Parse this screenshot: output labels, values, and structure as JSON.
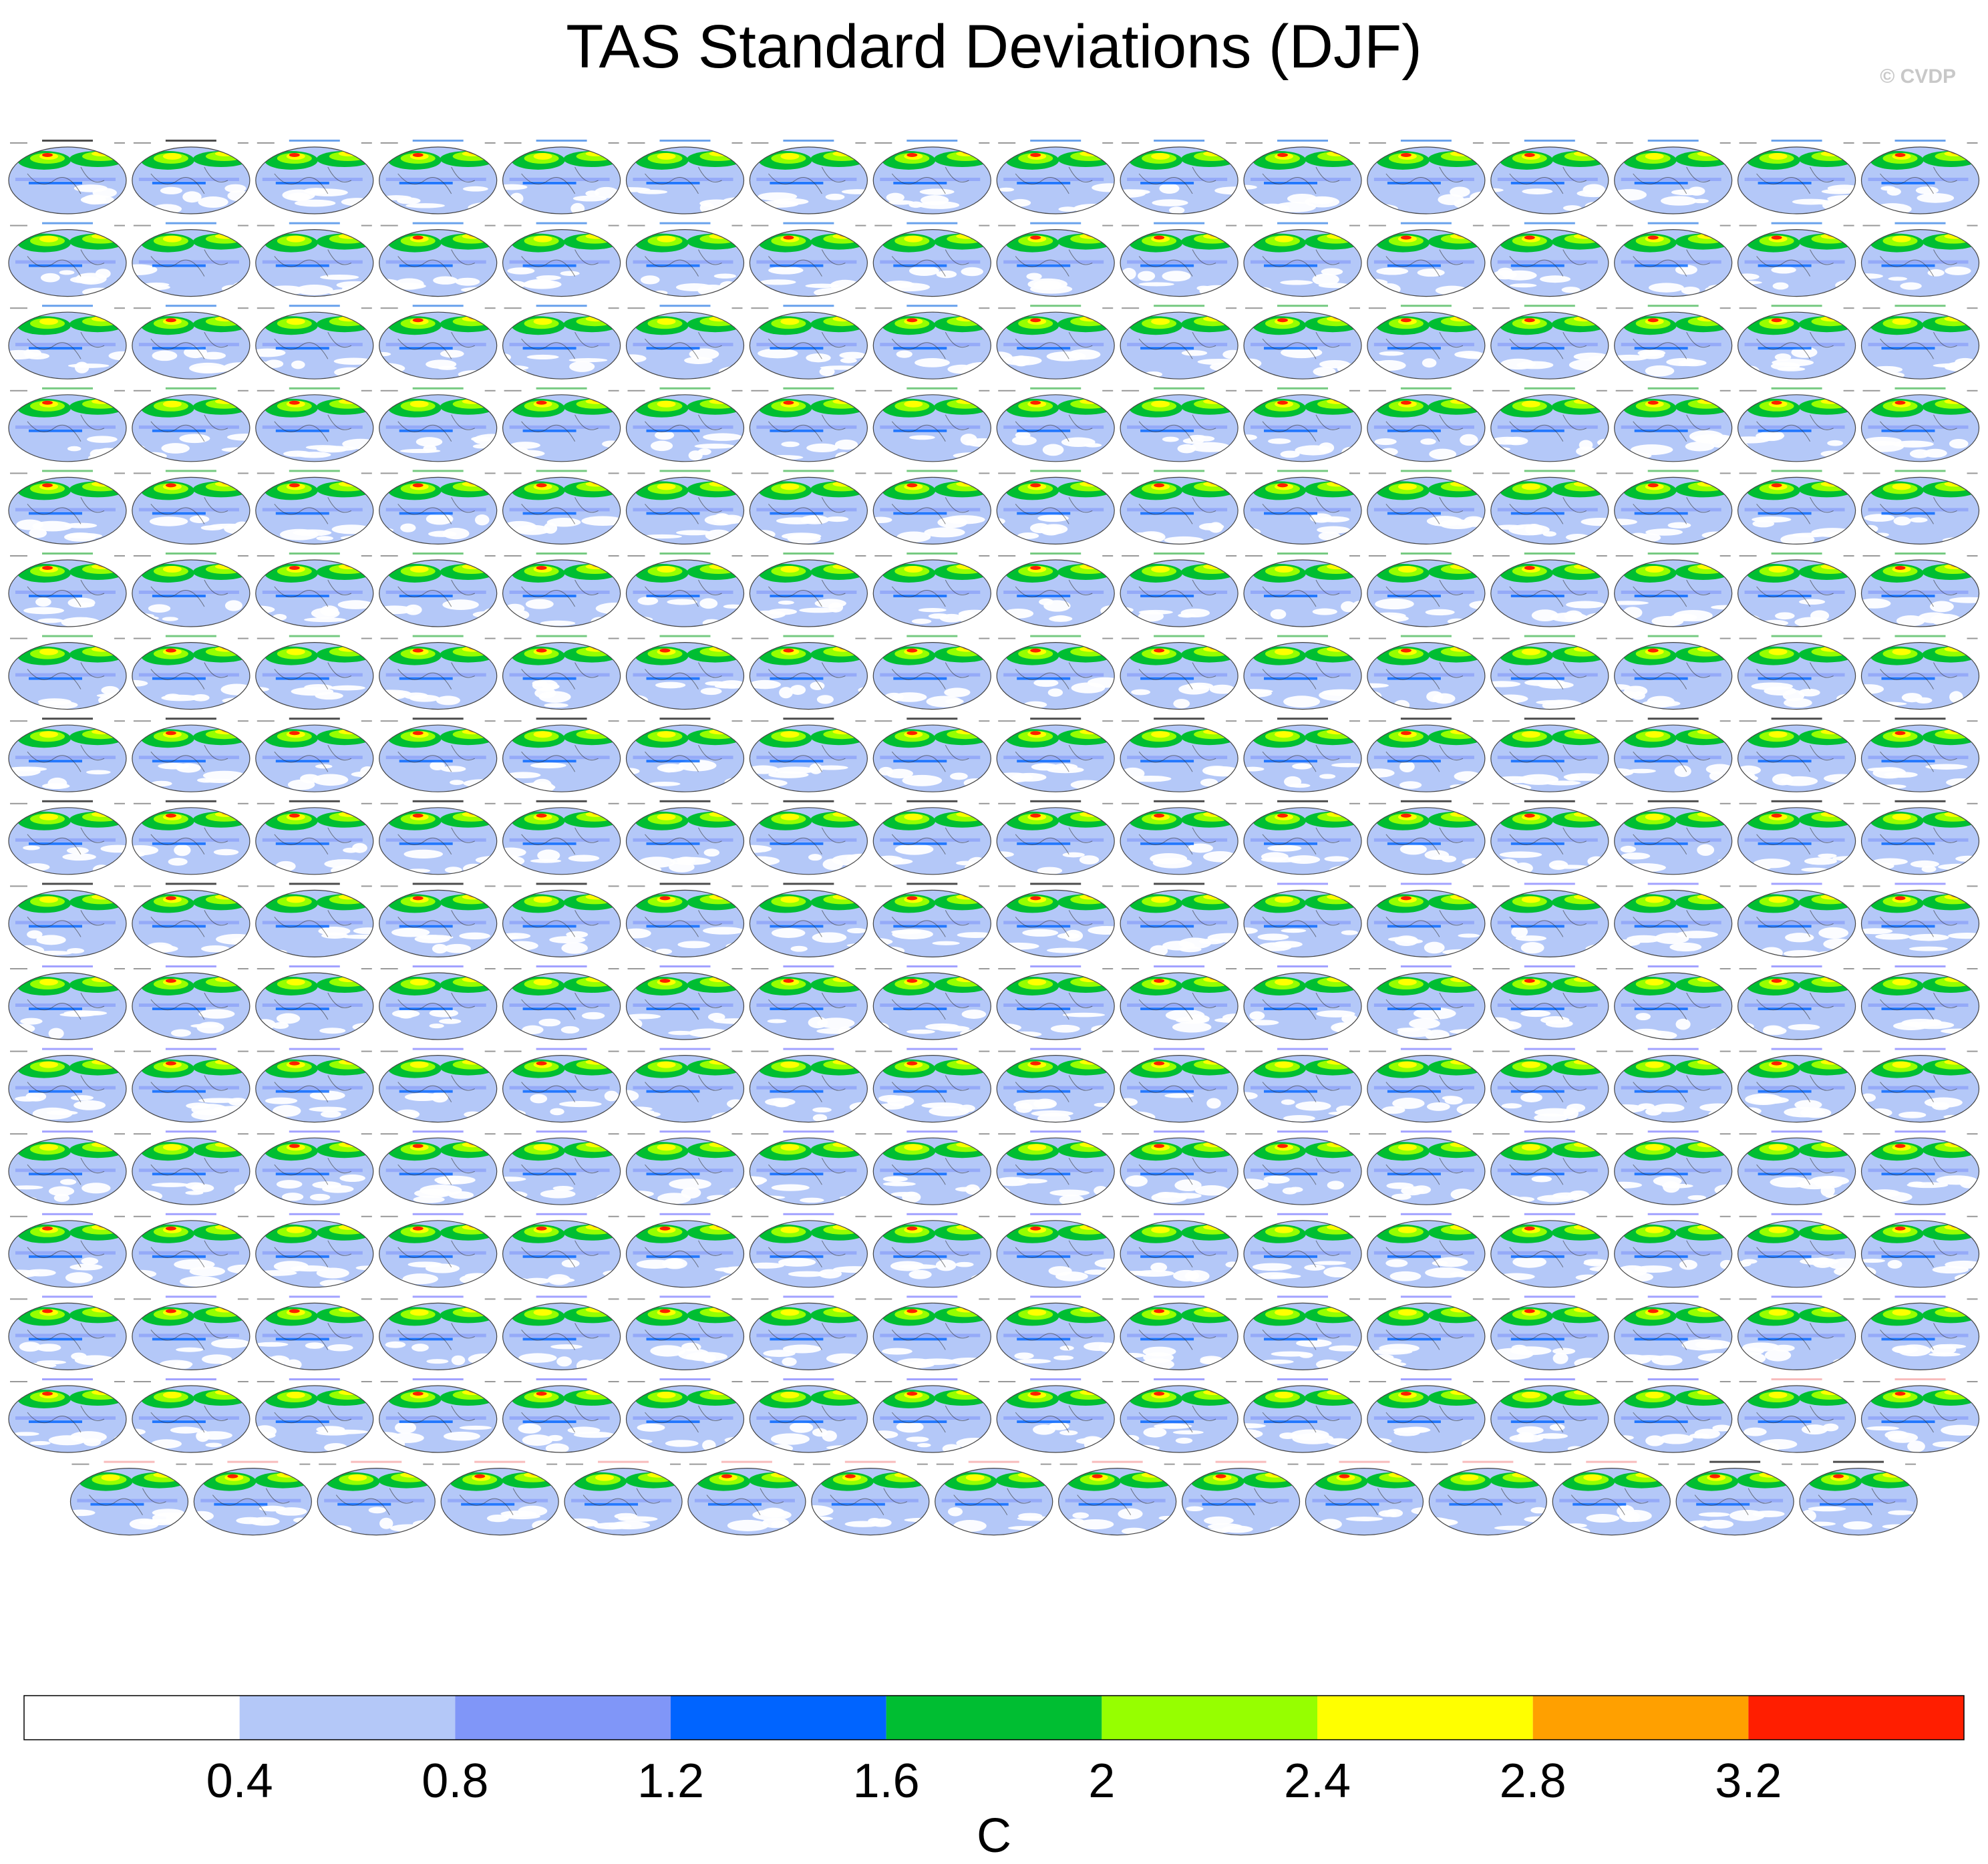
{
  "title": "TAS Standard Deviations (DJF)",
  "copyright": "© CVDP",
  "chart_data": {
    "type": "heatmap",
    "title": "TAS Standard Deviations (DJF)",
    "description_units": "C",
    "panel_grid": {
      "rows": 17,
      "cols": 16,
      "last_row_count": 15
    },
    "colorbar": {
      "label": "C",
      "tick_labels": [
        "0.4",
        "0.8",
        "1.2",
        "1.6",
        "2",
        "2.4",
        "2.8",
        "3.2"
      ],
      "levels": [
        0.4,
        0.8,
        1.2,
        1.6,
        2.0,
        2.4,
        2.8,
        3.2
      ],
      "colors": [
        "#ffffff",
        "#b4c8f8",
        "#8096f8",
        "#0064ff",
        "#00be32",
        "#96ff00",
        "#ffff00",
        "#ffa000",
        "#ff1e00"
      ]
    },
    "model_groups": [
      {
        "name": "BEST",
        "count": 1,
        "label_color": "#000000"
      },
      {
        "name": "GISTEMP",
        "count": 1,
        "label_color": "#000000"
      },
      {
        "name": "ACCESS-ESM1-5",
        "count": 38,
        "label_color": "#2a7be4"
      },
      {
        "name": "CanESM2",
        "count": 72,
        "label_color": "#3cb44b"
      },
      {
        "name": "CESM1",
        "count": 42,
        "label_color": "#000000"
      },
      {
        "name": "CESM2",
        "count": 100,
        "label_color": "#7a7aff"
      },
      {
        "name": "CSIRO-Mk3-6-0",
        "count": 15,
        "label_color": "#f5a0a0"
      }
    ]
  }
}
